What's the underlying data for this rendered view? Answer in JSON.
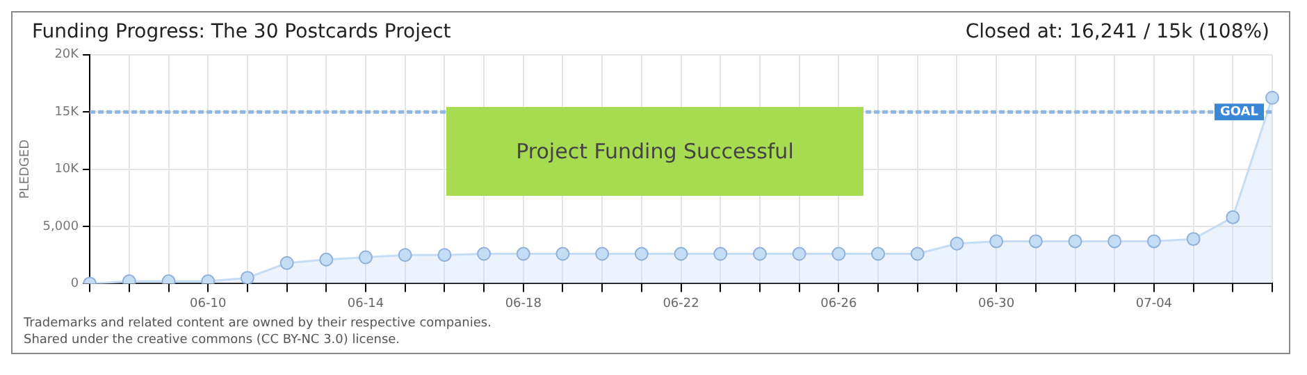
{
  "chart_data": {
    "type": "area",
    "title": "Funding Progress: The 30 Postcards Project",
    "subtitle": "Closed at:  16,241 /  15k (108%)",
    "ylabel": "PLEDGED",
    "categories": [
      null,
      null,
      null,
      "06-10",
      null,
      null,
      null,
      "06-14",
      null,
      null,
      null,
      "06-18",
      null,
      null,
      null,
      "06-22",
      null,
      null,
      null,
      "06-26",
      null,
      null,
      null,
      "06-30",
      null,
      null,
      null,
      "07-04",
      null,
      null,
      null
    ],
    "series": [
      {
        "color": "#c5dcf5",
        "values": [
          0,
          200,
          200,
          200,
          500,
          1800,
          2100,
          2300,
          2500,
          2500,
          2600,
          2600,
          2600,
          2600,
          2600,
          2600,
          2600,
          2600,
          2600,
          2600,
          2600,
          2600,
          3500,
          3700,
          3700,
          3700,
          3700,
          3700,
          3900,
          5800,
          16241
        ]
      }
    ],
    "ylim": [
      0,
      20000
    ],
    "yticks": [
      0,
      {
        "value": 5000,
        "label": "5,000"
      },
      {
        "value": 10000,
        "label": "10K"
      },
      {
        "value": 15000,
        "label": "15K"
      },
      {
        "value": 20000,
        "label": "20K"
      }
    ],
    "grid": true,
    "legend": false,
    "marker": "circle",
    "ref_lines": [
      {
        "axis": "y",
        "value": 15000,
        "label": "GOAL",
        "color": "#8fb5e0",
        "line_style": "dashed"
      }
    ],
    "annotations": [
      "Project Funding Successful",
      "Trademarks and related content are owned by their respective companies.",
      "Shared under the creative commons (CC BY-NC 3.0) license."
    ]
  }
}
